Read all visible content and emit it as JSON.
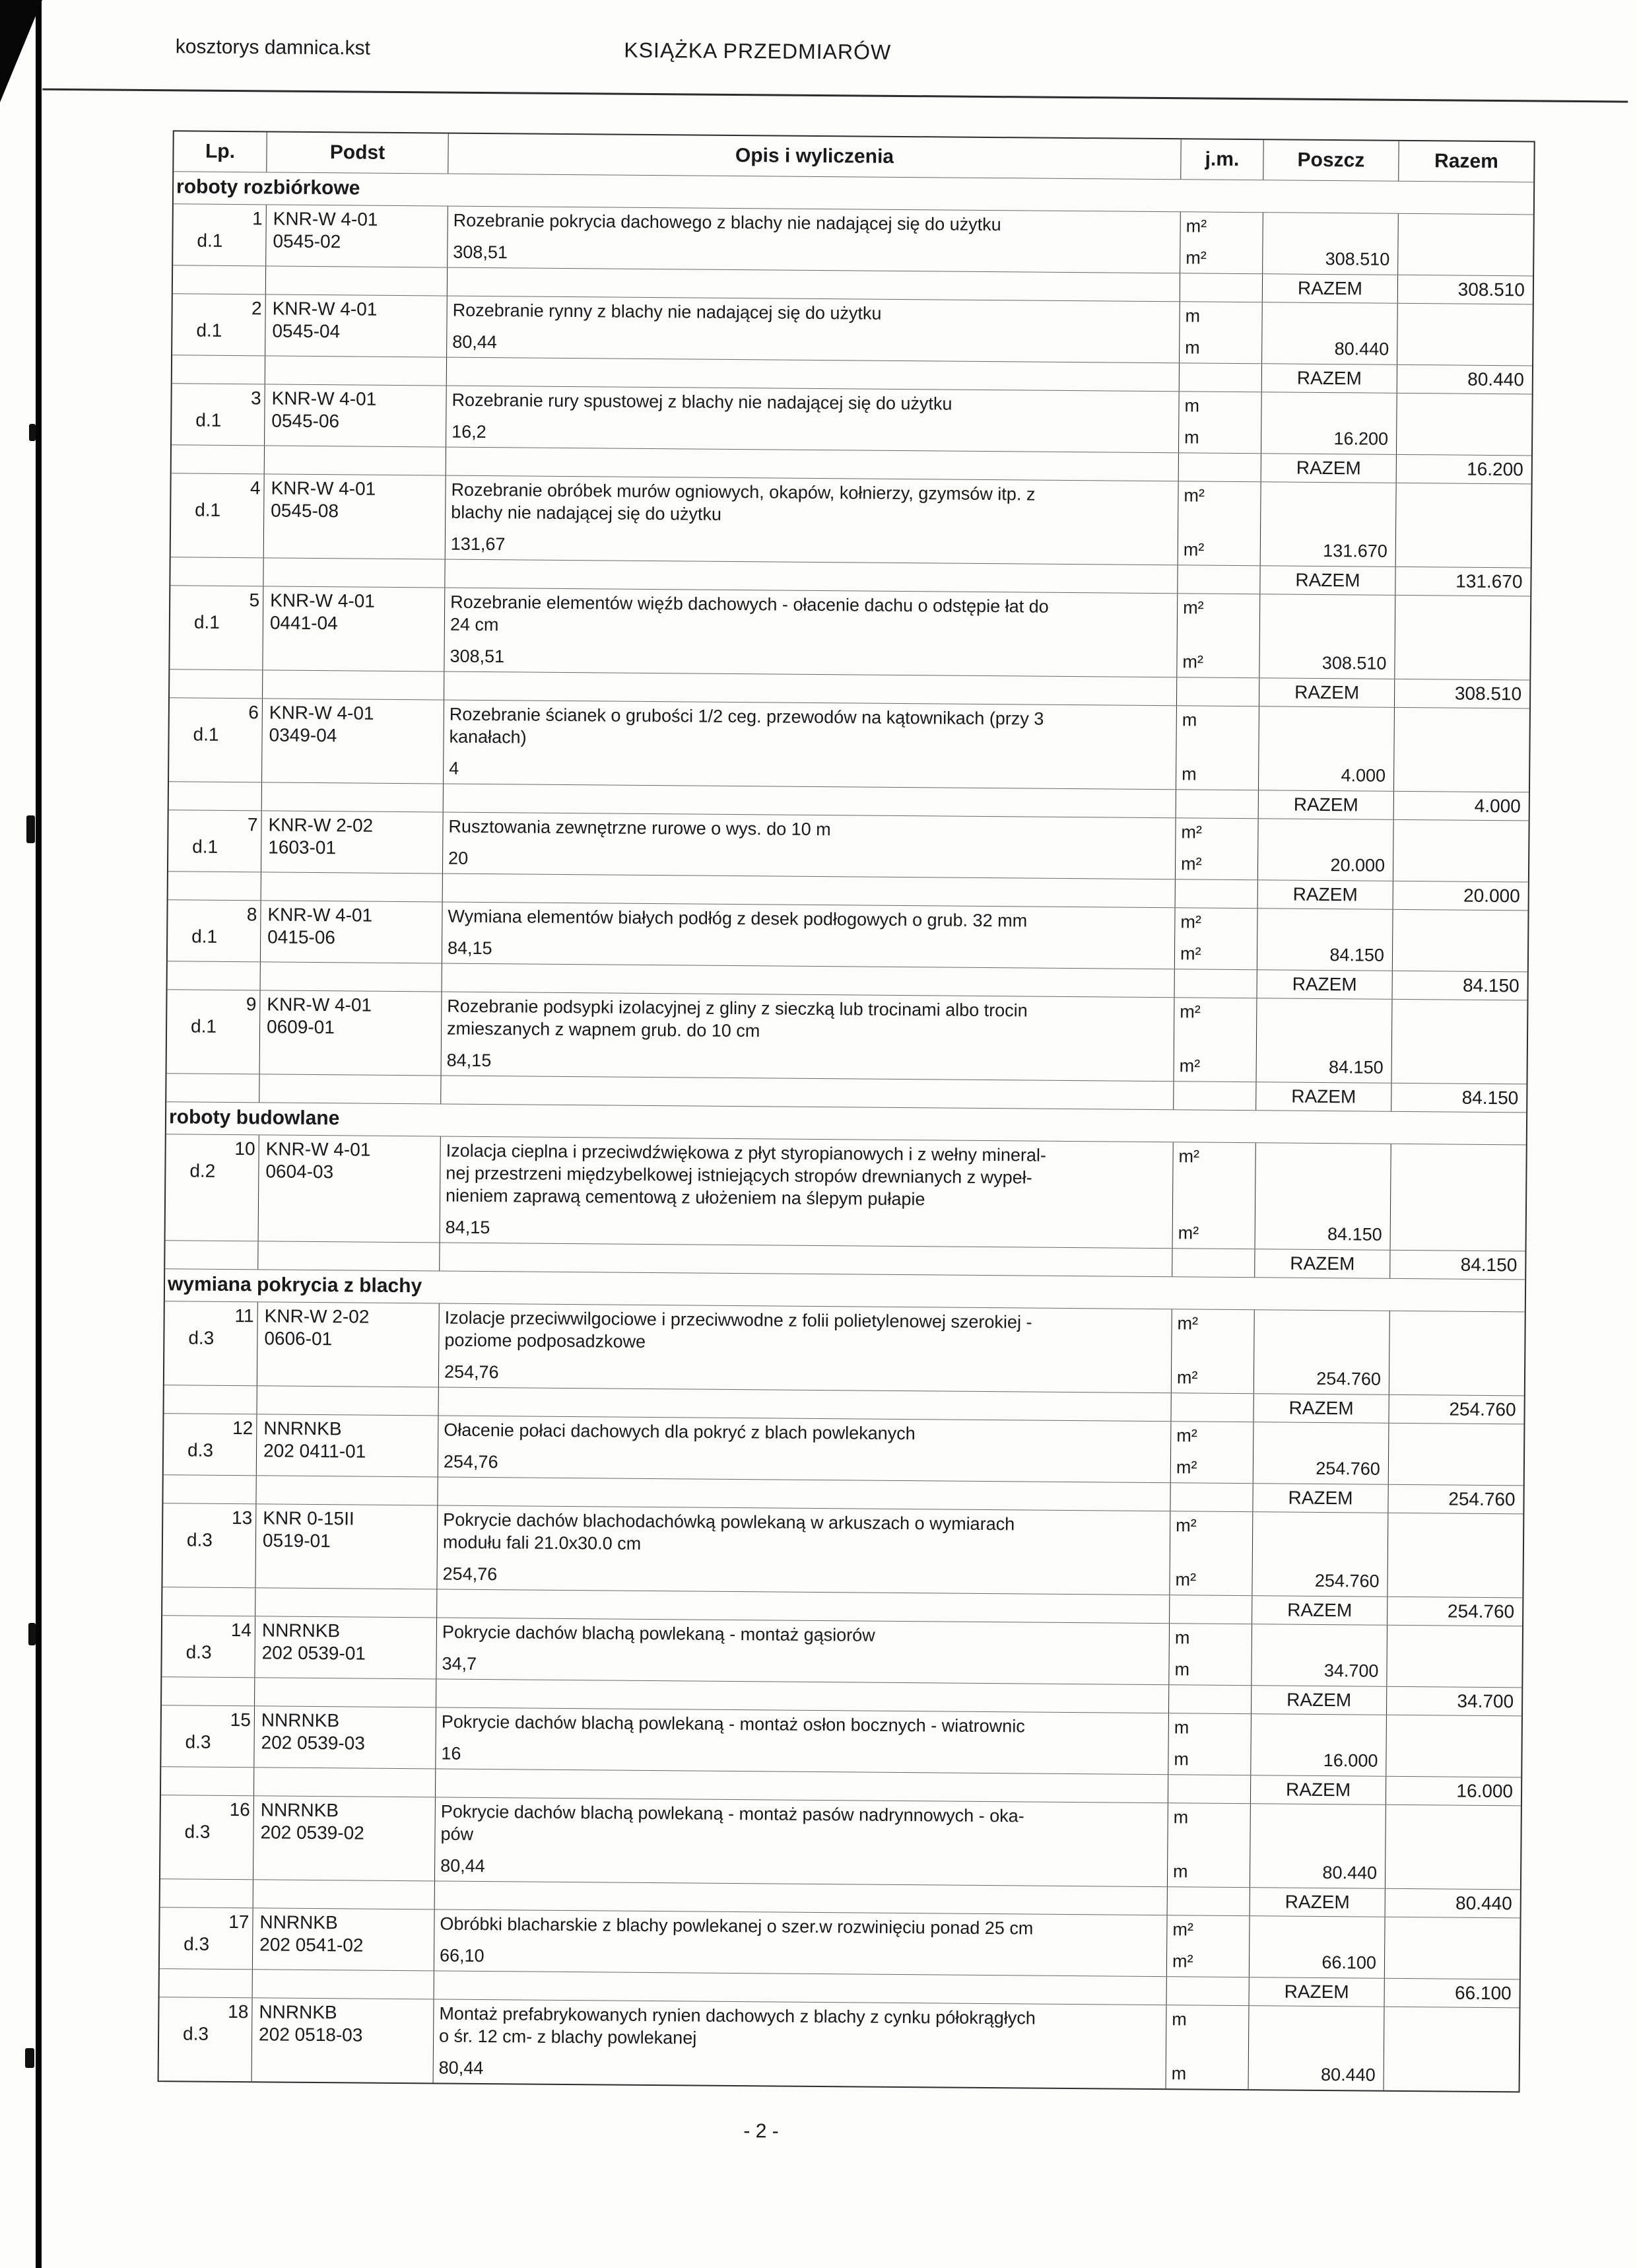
{
  "header": {
    "file_title": "kosztorys damnica.kst",
    "doc_title": "KSIĄŻKA PRZEDMIARÓW"
  },
  "table": {
    "columns": {
      "lp": "Lp.",
      "podst": "Podst",
      "opis": "Opis i wyliczenia",
      "jm": "j.m.",
      "poszcz": "Poszcz",
      "razem": "Razem"
    },
    "razem_label": "RAZEM",
    "sections": [
      {
        "label": "roboty rozbiórkowe",
        "items": [
          {
            "lp": "1",
            "dept": "d.1",
            "basis": [
              "KNR-W 4-01",
              "0545-02"
            ],
            "desc": [
              "Rozebranie pokrycia dachowego z blachy nie nadającej się do użytku"
            ],
            "unit": "m²",
            "qty": "308,51",
            "poszcz": "308.510",
            "razem": "308.510"
          },
          {
            "lp": "2",
            "dept": "d.1",
            "basis": [
              "KNR-W 4-01",
              "0545-04"
            ],
            "desc": [
              "Rozebranie rynny z blachy nie nadającej się do użytku"
            ],
            "unit": "m",
            "qty": "80,44",
            "poszcz": "80.440",
            "razem": "80.440"
          },
          {
            "lp": "3",
            "dept": "d.1",
            "basis": [
              "KNR-W 4-01",
              "0545-06"
            ],
            "desc": [
              "Rozebranie rury spustowej z blachy nie nadającej się do użytku"
            ],
            "unit": "m",
            "qty": "16,2",
            "poszcz": "16.200",
            "razem": "16.200"
          },
          {
            "lp": "4",
            "dept": "d.1",
            "basis": [
              "KNR-W 4-01",
              "0545-08"
            ],
            "desc": [
              "Rozebranie obróbek murów ogniowych, okapów, kołnierzy, gzymsów itp. z",
              "blachy nie nadającej się do użytku"
            ],
            "unit": "m²",
            "qty": "131,67",
            "poszcz": "131.670",
            "razem": "131.670"
          },
          {
            "lp": "5",
            "dept": "d.1",
            "basis": [
              "KNR-W 4-01",
              "0441-04"
            ],
            "desc": [
              "Rozebranie elementów więźb dachowych - ołacenie dachu o odstępie łat do",
              "24 cm"
            ],
            "unit": "m²",
            "qty": "308,51",
            "poszcz": "308.510",
            "razem": "308.510"
          },
          {
            "lp": "6",
            "dept": "d.1",
            "basis": [
              "KNR-W 4-01",
              "0349-04"
            ],
            "desc": [
              "Rozebranie ścianek o grubości 1/2 ceg. przewodów na kątownikach (przy 3",
              "kanałach)"
            ],
            "unit": "m",
            "qty": "4",
            "poszcz": "4.000",
            "razem": "4.000"
          },
          {
            "lp": "7",
            "dept": "d.1",
            "basis": [
              "KNR-W 2-02",
              "1603-01"
            ],
            "desc": [
              "Rusztowania zewnętrzne rurowe o wys. do 10 m"
            ],
            "unit": "m²",
            "qty": "20",
            "poszcz": "20.000",
            "razem": "20.000"
          },
          {
            "lp": "8",
            "dept": "d.1",
            "basis": [
              "KNR-W 4-01",
              "0415-06"
            ],
            "desc": [
              "Wymiana elementów białych podłóg z desek podłogowych o grub. 32 mm"
            ],
            "unit": "m²",
            "qty": "84,15",
            "poszcz": "84.150",
            "razem": "84.150"
          },
          {
            "lp": "9",
            "dept": "d.1",
            "basis": [
              "KNR-W 4-01",
              "0609-01"
            ],
            "desc": [
              "Rozebranie podsypki izolacyjnej z gliny z sieczką lub trocinami albo trocin",
              "zmieszanych z wapnem grub. do 10 cm"
            ],
            "unit": "m²",
            "qty": "84,15",
            "poszcz": "84.150",
            "razem": "84.150"
          }
        ]
      },
      {
        "label": "roboty budowlane",
        "items": [
          {
            "lp": "10",
            "dept": "d.2",
            "basis": [
              "KNR-W 4-01",
              "0604-03"
            ],
            "desc": [
              "Izolacja cieplna i przeciwdźwiękowa z płyt styropianowych i z wełny mineral-",
              "nej przestrzeni międzybelkowej istniejących stropów drewnianych z wypeł-",
              "nieniem zaprawą cementową z ułożeniem na ślepym pułapie"
            ],
            "unit": "m²",
            "qty": "84,15",
            "poszcz": "84.150",
            "razem": "84.150"
          }
        ]
      },
      {
        "label": "wymiana pokrycia z blachy",
        "items": [
          {
            "lp": "11",
            "dept": "d.3",
            "basis": [
              "KNR-W 2-02",
              "0606-01"
            ],
            "desc": [
              "Izolacje przeciwwilgociowe i przeciwwodne z folii polietylenowej szerokiej -",
              "poziome podposadzkowe"
            ],
            "unit": "m²",
            "qty": "254,76",
            "poszcz": "254.760",
            "razem": "254.760"
          },
          {
            "lp": "12",
            "dept": "d.3",
            "basis": [
              "NNRNKB",
              "202 0411-01"
            ],
            "desc": [
              "Ołacenie połaci dachowych dla pokryć z blach powlekanych"
            ],
            "unit": "m²",
            "qty": "254,76",
            "poszcz": "254.760",
            "razem": "254.760"
          },
          {
            "lp": "13",
            "dept": "d.3",
            "basis": [
              "KNR 0-15II",
              "0519-01"
            ],
            "desc": [
              "Pokrycie dachów blachodachówką powlekaną w arkuszach o wymiarach",
              "modułu fali 21.0x30.0 cm"
            ],
            "unit": "m²",
            "qty": "254,76",
            "poszcz": "254.760",
            "razem": "254.760"
          },
          {
            "lp": "14",
            "dept": "d.3",
            "basis": [
              "NNRNKB",
              "202 0539-01"
            ],
            "desc": [
              "Pokrycie dachów blachą powlekaną - montaż gąsiorów"
            ],
            "unit": "m",
            "qty": "34,7",
            "poszcz": "34.700",
            "razem": "34.700"
          },
          {
            "lp": "15",
            "dept": "d.3",
            "basis": [
              "NNRNKB",
              "202 0539-03"
            ],
            "desc": [
              "Pokrycie dachów blachą powlekaną - montaż osłon bocznych - wiatrownic"
            ],
            "unit": "m",
            "qty": "16",
            "poszcz": "16.000",
            "razem": "16.000"
          },
          {
            "lp": "16",
            "dept": "d.3",
            "basis": [
              "NNRNKB",
              "202 0539-02"
            ],
            "desc": [
              "Pokrycie dachów blachą powlekaną - montaż pasów nadrynnowych - oka-",
              "pów"
            ],
            "unit": "m",
            "qty": "80,44",
            "poszcz": "80.440",
            "razem": "80.440"
          },
          {
            "lp": "17",
            "dept": "d.3",
            "basis": [
              "NNRNKB",
              "202 0541-02"
            ],
            "desc": [
              "Obróbki blacharskie z blachy powlekanej o szer.w rozwinięciu ponad 25 cm"
            ],
            "unit": "m²",
            "qty": "66,10",
            "poszcz": "66.100",
            "razem": "66.100"
          },
          {
            "lp": "18",
            "dept": "d.3",
            "basis": [
              "NNRNKB",
              "202 0518-03"
            ],
            "desc": [
              "Montaż prefabrykowanych rynien dachowych z blachy z cynku półokrągłych",
              "o śr. 12 cm- z blachy powlekanej"
            ],
            "unit": "m",
            "qty": "80,44",
            "poszcz": "80.440",
            "razem": ""
          }
        ]
      }
    ]
  },
  "footer": {
    "page_number": "- 2 -"
  }
}
